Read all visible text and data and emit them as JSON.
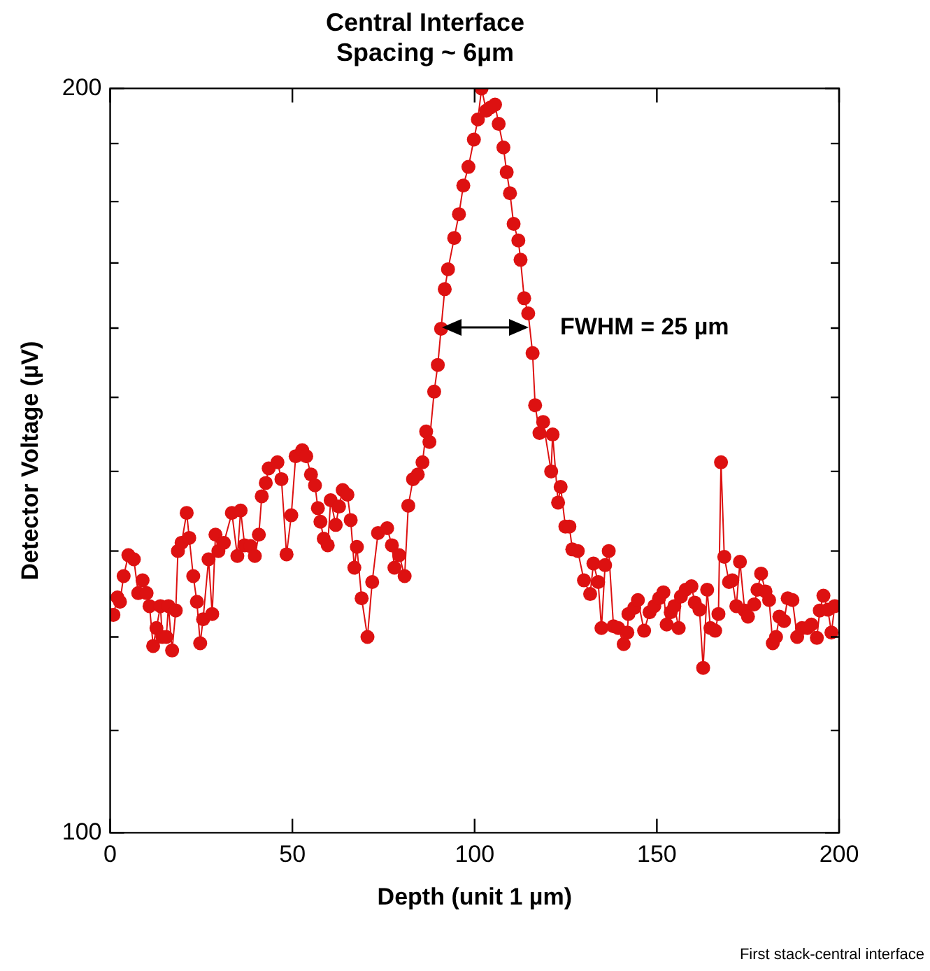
{
  "chart_data": {
    "type": "line",
    "title": "Central Interface\nSpacing ~ 6µm",
    "xlabel": "Depth (unit 1 µm)",
    "ylabel": "Detector Voltage (µV)",
    "log": "y",
    "grid": false,
    "legend": false,
    "marker": "circle",
    "line_style": "solid",
    "xlim": [
      0,
      200
    ],
    "xticks": [
      0,
      50,
      100,
      150,
      200
    ],
    "ylim": [
      100,
      200
    ],
    "yticks": [
      100,
      {
        "value": 110,
        "label": null
      },
      {
        "value": 120,
        "label": null
      },
      {
        "value": 130,
        "label": null
      },
      {
        "value": 140,
        "label": null
      },
      {
        "value": 150,
        "label": null
      },
      {
        "value": 160,
        "label": null
      },
      {
        "value": 170,
        "label": null
      },
      {
        "value": 180,
        "label": null
      },
      {
        "value": 190,
        "label": null
      },
      200
    ],
    "series": [
      {
        "color": "#dd1111",
        "x": [
          0.9,
          2,
          2.7,
          3.7,
          5,
          6.5,
          7.7,
          8.9,
          10,
          10.8,
          11.8,
          12.7,
          13.8,
          14.3,
          15.4,
          16,
          17,
          18,
          18.6,
          19.6,
          21,
          21.7,
          22.8,
          23.8,
          24.7,
          25.5,
          27,
          28,
          28.9,
          29.7,
          31.2,
          33.4,
          34.9,
          35.8,
          36.9,
          38.5,
          39.7,
          40.8,
          41.6,
          42.7,
          43.5,
          45.9,
          47,
          48.4,
          49.7,
          50.9,
          52.7,
          53.8,
          55.1,
          56.2,
          57,
          57.7,
          58.6,
          59.7,
          60.5,
          61.9,
          62.8,
          63.8,
          65.1,
          66,
          67,
          67.7,
          69,
          70.6,
          71.9,
          73.5,
          76,
          77.3,
          78,
          79.3,
          80.8,
          81.8,
          83.1,
          84.4,
          85.7,
          86.7,
          87.6,
          88.9,
          89.9,
          90.8,
          91.8,
          92.7,
          94.4,
          95.7,
          96.9,
          98.3,
          99.8,
          100.9,
          101.9,
          103.2,
          104.4,
          105.6,
          106.6,
          107.9,
          108.8,
          109.7,
          110.7,
          112,
          112.6,
          113.6,
          114.7,
          115.9,
          116.6,
          117.8,
          118.8,
          121,
          121.4,
          122.9,
          123.6,
          124.9,
          126,
          126.8,
          128.3,
          130,
          131.7,
          132.6,
          133.9,
          134.8,
          135.8,
          136.8,
          138.1,
          139.4,
          140.9,
          141.9,
          142.2,
          143.8,
          144.8,
          146.5,
          148,
          149.3,
          150.6,
          151.8,
          152.7,
          153.8,
          154.8,
          156,
          156.6,
          157.9,
          159.5,
          160.4,
          161.7,
          162.7,
          163.8,
          164.7,
          166,
          166.9,
          167.6,
          168.5,
          169.8,
          170.7,
          171.8,
          172.8,
          174.1,
          175,
          176.7,
          177.6,
          178.6,
          179.8,
          180.8,
          181.8,
          182.7,
          183.6,
          184.9,
          185.9,
          187.2,
          188.5,
          189.8,
          191.3,
          192.4,
          193.9,
          194.7,
          195.7,
          196.9,
          197.9,
          198.8
        ],
        "values": [
          122.5,
          124.5,
          124,
          127,
          129.5,
          129,
          125,
          126.5,
          125,
          123.5,
          119,
          121,
          123.5,
          120,
          120,
          123.5,
          118.5,
          123,
          130,
          131,
          134.7,
          131.6,
          127,
          124,
          119.3,
          122,
          129,
          122.6,
          132,
          130,
          131,
          134.7,
          129.4,
          135,
          130.7,
          130.6,
          129.4,
          132,
          136.8,
          138.5,
          140.4,
          141.2,
          139,
          129.6,
          134.4,
          142,
          142.8,
          142,
          139.6,
          138.2,
          135.3,
          133.6,
          131.5,
          130.7,
          136.3,
          133.2,
          135.5,
          137.6,
          137,
          133.8,
          128,
          130.5,
          124.4,
          120,
          126.3,
          132.2,
          132.8,
          130.7,
          128,
          129.5,
          127,
          135.6,
          139,
          139.6,
          141.2,
          145.3,
          143.9,
          150.8,
          154.6,
          159.9,
          165.9,
          169,
          174,
          177.9,
          182.7,
          185.9,
          190.7,
          194.3,
          200,
          195.9,
          196.5,
          197,
          193.5,
          189.3,
          185,
          181.4,
          176.3,
          173.6,
          170.5,
          164.5,
          162.2,
          156.3,
          148.9,
          145.1,
          146.6,
          140,
          144.9,
          136,
          138,
          133,
          133,
          130.2,
          130,
          126.5,
          124.9,
          128.5,
          126.3,
          121,
          128.3,
          130,
          121.2,
          121,
          119.2,
          120.5,
          122.6,
          123.3,
          124.2,
          120.7,
          122.8,
          123.5,
          124.4,
          125.1,
          121.4,
          122.8,
          123.5,
          121,
          124.6,
          125.4,
          125.8,
          123.9,
          123.1,
          116.6,
          125.4,
          121,
          120.7,
          122.6,
          141.2,
          129.3,
          126.3,
          126.5,
          123.5,
          128.7,
          123,
          122.3,
          123.7,
          125.4,
          127.3,
          125.2,
          124.2,
          119.3,
          120,
          122.3,
          121.8,
          124.4,
          124.2,
          120,
          121,
          121,
          121.4,
          119.9,
          123,
          124.7,
          123.1,
          120.5,
          123.5
        ]
      }
    ],
    "annotations": [
      {
        "text": "FWHM = 25 µm",
        "x": 115,
        "y": 160
      },
      "First stack-central interface"
    ]
  }
}
